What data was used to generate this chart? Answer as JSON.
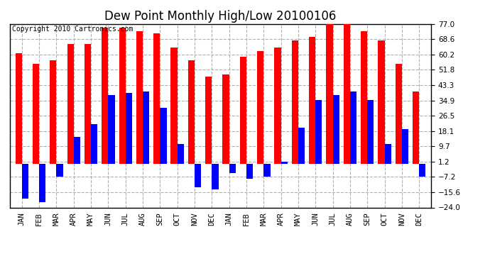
{
  "title": "Dew Point Monthly High/Low 20100106",
  "copyright": "Copyright 2010 Cartronics.com",
  "yticks": [
    77.0,
    68.6,
    60.2,
    51.8,
    43.3,
    34.9,
    26.5,
    18.1,
    9.7,
    1.2,
    -7.2,
    -15.6,
    -24.0
  ],
  "ymin": -24.0,
  "ymax": 77.0,
  "months": [
    "JAN",
    "FEB",
    "MAR",
    "APR",
    "MAY",
    "JUN",
    "JUL",
    "AUG",
    "SEP",
    "OCT",
    "NOV",
    "DEC",
    "JAN",
    "FEB",
    "MAR",
    "APR",
    "MAY",
    "JUN",
    "JUL",
    "AUG",
    "SEP",
    "OCT",
    "NOV",
    "DEC"
  ],
  "high_values": [
    61.0,
    55.0,
    57.0,
    66.0,
    66.0,
    75.0,
    75.0,
    73.0,
    72.0,
    64.0,
    57.0,
    48.0,
    49.0,
    59.0,
    62.0,
    64.0,
    68.0,
    70.0,
    77.0,
    77.0,
    73.0,
    68.0,
    55.0,
    40.0
  ],
  "low_values": [
    -19.0,
    -21.0,
    -7.0,
    15.0,
    22.0,
    38.0,
    39.0,
    40.0,
    31.0,
    11.0,
    -13.0,
    -14.0,
    -5.0,
    -8.0,
    -7.0,
    1.0,
    20.0,
    35.0,
    38.0,
    40.0,
    35.0,
    11.0,
    19.0,
    -7.0
  ],
  "bar_width": 0.38,
  "high_color": "#ff0000",
  "low_color": "#0000ff",
  "bg_color": "#ffffff",
  "plot_bg_color": "#ffffff",
  "grid_color": "#b0b0b0",
  "title_fontsize": 12,
  "tick_fontsize": 7.5,
  "copyright_fontsize": 7
}
